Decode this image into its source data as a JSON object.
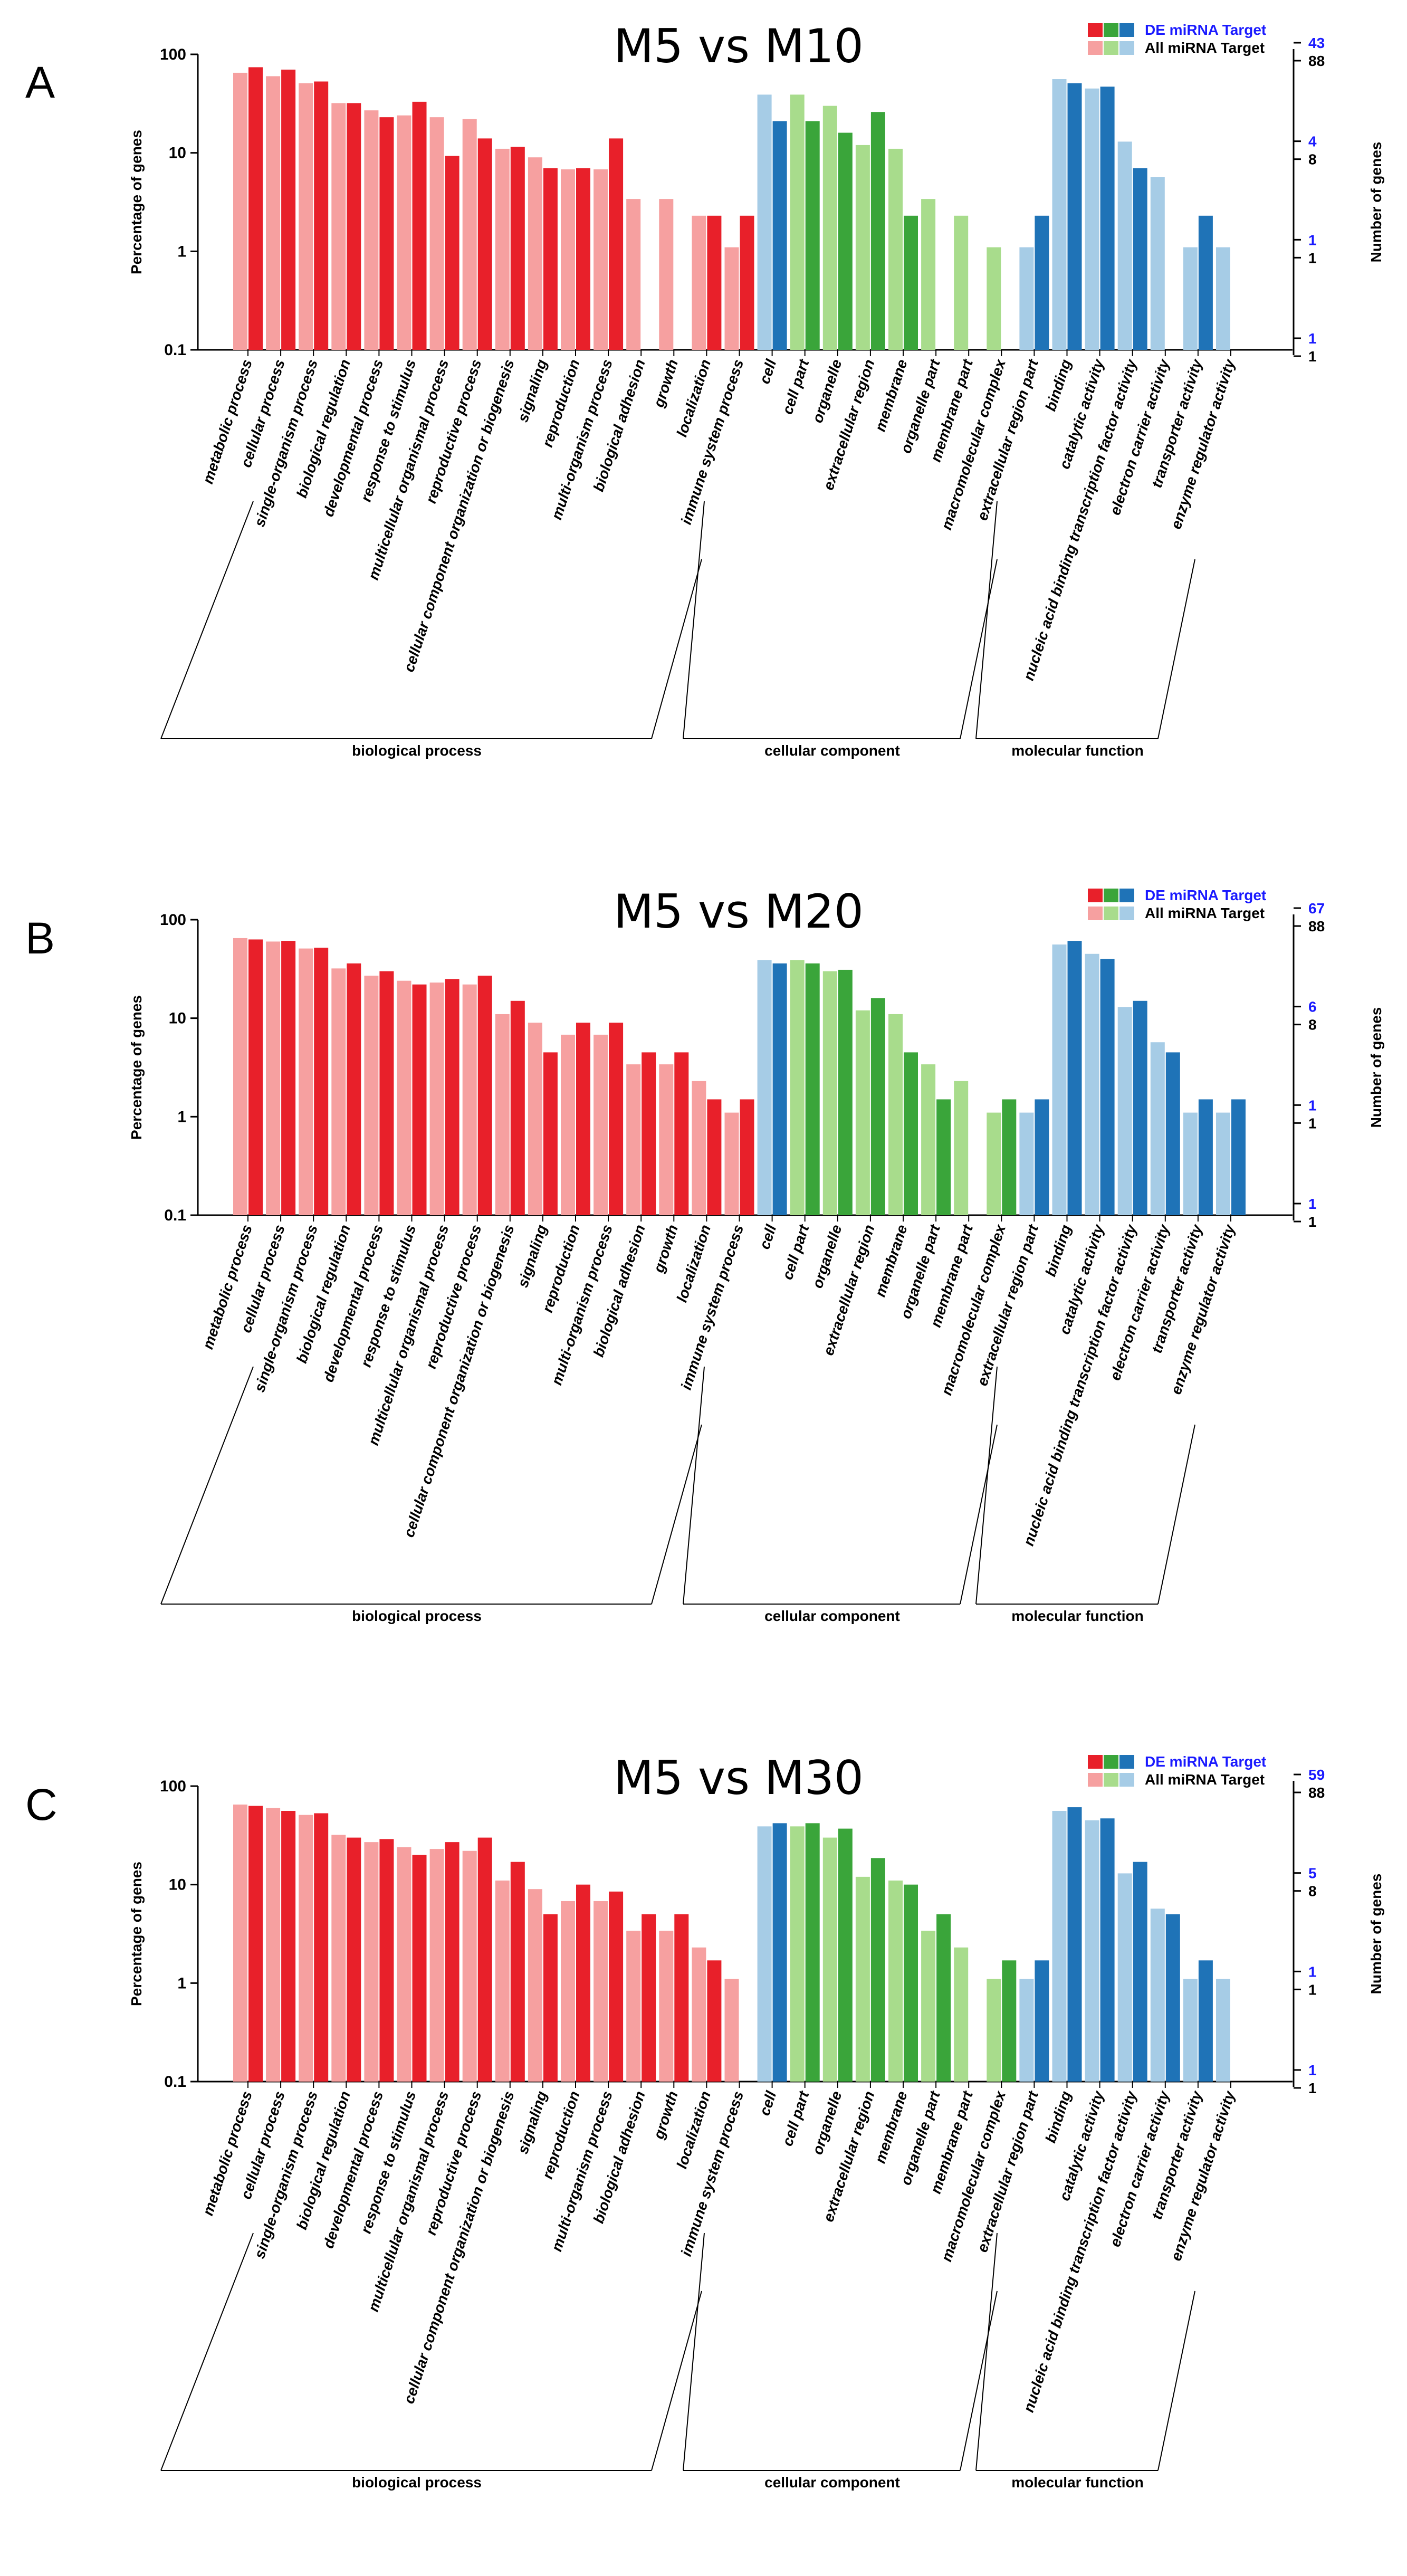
{
  "figure": {
    "panel_letters": [
      "A",
      "B",
      "C"
    ]
  },
  "chart_data": [
    {
      "type": "bar",
      "title": "M5 vs M10",
      "ylabel": "Percentage of genes",
      "y2label": "Number of genes",
      "yscale": "log",
      "ylim": [
        0.1,
        100
      ],
      "yticks": [
        "100",
        "10",
        "1",
        "0.1"
      ],
      "right_ticks_de": [
        "43",
        "4",
        "1",
        "1"
      ],
      "right_ticks_all": [
        "88",
        "8",
        "1",
        "1"
      ],
      "legend": [
        "DE miRNA Target",
        "All miRNA Target"
      ],
      "legend_placement": "top-right",
      "groups": [
        {
          "name": "biological process",
          "start": 0,
          "end": 16
        },
        {
          "name": "cellular component",
          "start": 17,
          "end": 24
        },
        {
          "name": "molecular function",
          "start": 25,
          "end": 31
        }
      ],
      "categories": [
        "metabolic process",
        "cellular process",
        "single-organism process",
        "biological regulation",
        "developmental process",
        "response to stimulus",
        "multicellular organismal process",
        "reproductive process",
        "cellular component organization or biogenesis",
        "signaling",
        "reproduction",
        "multi-organism process",
        "biological adhesion",
        "growth",
        "localization",
        "immune system process",
        "cell",
        "cell part",
        "organelle",
        "extracellular region",
        "membrane",
        "organelle part",
        "membrane part",
        "macromolecular complex",
        "extracellular region part",
        "binding",
        "catalytic activity",
        "nucleic acid binding transcription factor activity",
        "electron carrier activity",
        "transporter activity",
        "enzyme regulator activity"
      ],
      "series": [
        {
          "name": "All miRNA Target",
          "values": [
            65,
            60,
            51,
            32,
            27,
            24,
            23,
            22,
            11,
            9,
            6.8,
            6.8,
            3.4,
            3.4,
            2.3,
            1.1,
            39,
            39,
            30,
            12,
            11,
            3.4,
            2.3,
            1.1,
            1.1,
            56,
            45,
            13,
            5.7,
            1.1,
            1.1
          ]
        },
        {
          "name": "DE miRNA Target",
          "values": [
            74,
            70,
            53,
            32,
            23,
            33,
            9.3,
            14,
            11.5,
            7,
            7,
            14,
            null,
            null,
            2.3,
            2.3,
            21,
            21,
            16,
            26,
            2.3,
            null,
            null,
            null,
            2.3,
            51,
            47,
            7,
            null,
            2.3,
            null
          ]
        }
      ]
    },
    {
      "type": "bar",
      "title": "M5 vs M20",
      "ylabel": "Percentage of genes",
      "y2label": "Number of genes",
      "yscale": "log",
      "ylim": [
        0.1,
        100
      ],
      "yticks": [
        "100",
        "10",
        "1",
        "0.1"
      ],
      "right_ticks_de": [
        "67",
        "6",
        "1",
        "1"
      ],
      "right_ticks_all": [
        "88",
        "8",
        "1",
        "1"
      ],
      "legend": [
        "DE miRNA Target",
        "All miRNA Target"
      ],
      "legend_placement": "top-right",
      "groups": [
        {
          "name": "biological process",
          "start": 0,
          "end": 16
        },
        {
          "name": "cellular component",
          "start": 17,
          "end": 24
        },
        {
          "name": "molecular function",
          "start": 25,
          "end": 31
        }
      ],
      "categories": [
        "metabolic process",
        "cellular process",
        "single-organism process",
        "biological regulation",
        "developmental process",
        "response to stimulus",
        "multicellular organismal process",
        "reproductive process",
        "cellular component organization or biogenesis",
        "signaling",
        "reproduction",
        "multi-organism process",
        "biological adhesion",
        "growth",
        "localization",
        "immune system process",
        "cell",
        "cell part",
        "organelle",
        "extracellular region",
        "membrane",
        "organelle part",
        "membrane part",
        "macromolecular complex",
        "extracellular region part",
        "binding",
        "catalytic activity",
        "nucleic acid binding transcription factor activity",
        "electron carrier activity",
        "transporter activity",
        "enzyme regulator activity"
      ],
      "series": [
        {
          "name": "All miRNA Target",
          "values": [
            65,
            60,
            51,
            32,
            27,
            24,
            23,
            22,
            11,
            9,
            6.8,
            6.8,
            3.4,
            3.4,
            2.3,
            1.1,
            39,
            39,
            30,
            12,
            11,
            3.4,
            2.3,
            1.1,
            1.1,
            56,
            45,
            13,
            5.7,
            1.1,
            1.1
          ]
        },
        {
          "name": "DE miRNA Target",
          "values": [
            63,
            61,
            52,
            36,
            30,
            22,
            25,
            27,
            15,
            4.5,
            9,
            9,
            4.5,
            4.5,
            1.5,
            1.5,
            36,
            36,
            31,
            16,
            4.5,
            1.5,
            null,
            1.5,
            1.5,
            61,
            40,
            15,
            4.5,
            1.5,
            1.5
          ]
        }
      ]
    },
    {
      "type": "bar",
      "title": "M5 vs M30",
      "ylabel": "Percentage of genes",
      "y2label": "Number of genes",
      "yscale": "log",
      "ylim": [
        0.1,
        100
      ],
      "yticks": [
        "100",
        "10",
        "1",
        "0.1"
      ],
      "right_ticks_de": [
        "59",
        "5",
        "1",
        "1"
      ],
      "right_ticks_all": [
        "88",
        "8",
        "1",
        "1"
      ],
      "legend": [
        "DE miRNA Target",
        "All miRNA Target"
      ],
      "legend_placement": "top-right",
      "groups": [
        {
          "name": "biological process",
          "start": 0,
          "end": 16
        },
        {
          "name": "cellular component",
          "start": 17,
          "end": 24
        },
        {
          "name": "molecular function",
          "start": 25,
          "end": 31
        }
      ],
      "categories": [
        "metabolic process",
        "cellular process",
        "single-organism process",
        "biological regulation",
        "developmental process",
        "response to stimulus",
        "multicellular organismal process",
        "reproductive process",
        "cellular component organization or biogenesis",
        "signaling",
        "reproduction",
        "multi-organism process",
        "biological adhesion",
        "growth",
        "localization",
        "immune system process",
        "cell",
        "cell part",
        "organelle",
        "extracellular region",
        "membrane",
        "organelle part",
        "membrane part",
        "macromolecular complex",
        "extracellular region part",
        "binding",
        "catalytic activity",
        "nucleic acid binding transcription factor activity",
        "electron carrier activity",
        "transporter activity",
        "enzyme regulator activity"
      ],
      "series": [
        {
          "name": "All miRNA Target",
          "values": [
            65,
            60,
            51,
            32,
            27,
            24,
            23,
            22,
            11,
            9,
            6.8,
            6.8,
            3.4,
            3.4,
            2.3,
            1.1,
            39,
            39,
            30,
            12,
            11,
            3.4,
            2.3,
            1.1,
            1.1,
            56,
            45,
            13,
            5.7,
            1.1,
            1.1
          ]
        },
        {
          "name": "DE miRNA Target",
          "values": [
            63,
            56,
            53,
            30,
            29,
            20,
            27,
            30,
            17,
            5,
            10,
            8.5,
            5,
            5,
            1.7,
            null,
            42,
            42,
            37,
            18.6,
            10,
            5,
            null,
            1.7,
            1.7,
            61,
            47,
            17,
            5,
            1.7,
            null
          ]
        }
      ]
    }
  ],
  "colors": {
    "bp_dark": "#e8202a",
    "bp_light": "#f6a0a0",
    "cc_dark": "#3aa53a",
    "cc_light": "#a8dc8c",
    "mf_dark": "#1f73b7",
    "mf_light": "#a6cce6",
    "legend_de_text": "#1a1aff",
    "axis": "#000000"
  }
}
